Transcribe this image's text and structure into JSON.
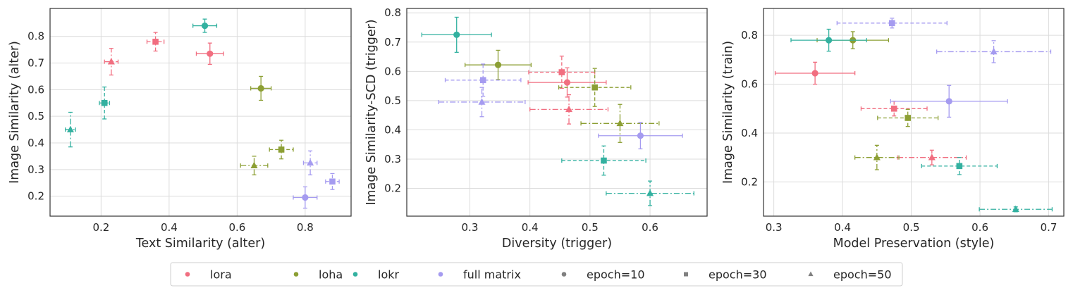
{
  "legend": {
    "position": "bottom-center",
    "entries": [
      {
        "label": "lora",
        "color": "#f16e80",
        "marker": "circle"
      },
      {
        "label": "loha",
        "color": "#8c9f34",
        "marker": "circle"
      },
      {
        "label": "lokr",
        "color": "#33b1a0",
        "marker": "circle"
      },
      {
        "label": "full matrix",
        "color": "#a59bf0",
        "marker": "circle"
      },
      {
        "label": "epoch=10",
        "color": "#808080",
        "marker": "circle"
      },
      {
        "label": "epoch=30",
        "color": "#808080",
        "marker": "square"
      },
      {
        "label": "epoch=50",
        "color": "#808080",
        "marker": "triangle"
      }
    ]
  },
  "colors": {
    "lora": "#f16e80",
    "loha": "#8c9f34",
    "lokr": "#33b1a0",
    "full matrix": "#a59bf0"
  },
  "markers": {
    "10": "circle",
    "30": "square",
    "50": "triangle"
  },
  "line_styles": {
    "10": "solid",
    "30": "dashed",
    "50": "dashdot"
  },
  "chart_data": [
    {
      "type": "scatter",
      "xlabel": "Text Similarity (alter)",
      "ylabel": "Image Similarity (alter)",
      "xlim": [
        0.05,
        0.935
      ],
      "ylim": [
        0.125,
        0.905
      ],
      "xticks": [
        0.2,
        0.4,
        0.6,
        0.8
      ],
      "yticks": [
        0.2,
        0.3,
        0.4,
        0.5,
        0.6,
        0.7,
        0.8
      ],
      "grid": true,
      "points": [
        {
          "algo": "lora",
          "epoch": 10,
          "x": 0.52,
          "y": 0.735,
          "xerr": 0.04,
          "yerr": 0.04
        },
        {
          "algo": "lora",
          "epoch": 30,
          "x": 0.36,
          "y": 0.78,
          "xerr": 0.025,
          "yerr": 0.035
        },
        {
          "algo": "lora",
          "epoch": 50,
          "x": 0.23,
          "y": 0.705,
          "xerr": 0.02,
          "yerr": 0.05
        },
        {
          "algo": "loha",
          "epoch": 10,
          "x": 0.67,
          "y": 0.605,
          "xerr": 0.03,
          "yerr": 0.045
        },
        {
          "algo": "loha",
          "epoch": 30,
          "x": 0.73,
          "y": 0.375,
          "xerr": 0.035,
          "yerr": 0.035
        },
        {
          "algo": "loha",
          "epoch": 50,
          "x": 0.65,
          "y": 0.315,
          "xerr": 0.04,
          "yerr": 0.035
        },
        {
          "algo": "lokr",
          "epoch": 10,
          "x": 0.505,
          "y": 0.84,
          "xerr": 0.035,
          "yerr": 0.025
        },
        {
          "algo": "lokr",
          "epoch": 30,
          "x": 0.21,
          "y": 0.55,
          "xerr": 0.015,
          "yerr": 0.06
        },
        {
          "algo": "lokr",
          "epoch": 50,
          "x": 0.11,
          "y": 0.45,
          "xerr": 0.015,
          "yerr": 0.065
        },
        {
          "algo": "full matrix",
          "epoch": 10,
          "x": 0.8,
          "y": 0.195,
          "xerr": 0.035,
          "yerr": 0.04
        },
        {
          "algo": "full matrix",
          "epoch": 30,
          "x": 0.88,
          "y": 0.255,
          "xerr": 0.02,
          "yerr": 0.03
        },
        {
          "algo": "full matrix",
          "epoch": 50,
          "x": 0.815,
          "y": 0.325,
          "xerr": 0.02,
          "yerr": 0.045
        }
      ]
    },
    {
      "type": "scatter",
      "xlabel": "Diversity (trigger)",
      "ylabel": "Image Similarity-SCD (trigger)",
      "xlim": [
        0.195,
        0.695
      ],
      "ylim": [
        0.105,
        0.815
      ],
      "xticks": [
        0.3,
        0.4,
        0.5,
        0.6
      ],
      "yticks": [
        0.2,
        0.3,
        0.4,
        0.5,
        0.6,
        0.7,
        0.8
      ],
      "grid": true,
      "points": [
        {
          "algo": "lora",
          "epoch": 10,
          "x": 0.462,
          "y": 0.562,
          "xerr": 0.065,
          "yerr": 0.05
        },
        {
          "algo": "lora",
          "epoch": 30,
          "x": 0.453,
          "y": 0.597,
          "xerr": 0.055,
          "yerr": 0.055
        },
        {
          "algo": "lora",
          "epoch": 50,
          "x": 0.465,
          "y": 0.47,
          "xerr": 0.065,
          "yerr": 0.05
        },
        {
          "algo": "loha",
          "epoch": 10,
          "x": 0.347,
          "y": 0.622,
          "xerr": 0.055,
          "yerr": 0.05
        },
        {
          "algo": "loha",
          "epoch": 30,
          "x": 0.508,
          "y": 0.545,
          "xerr": 0.06,
          "yerr": 0.065
        },
        {
          "algo": "loha",
          "epoch": 50,
          "x": 0.55,
          "y": 0.422,
          "xerr": 0.065,
          "yerr": 0.065
        },
        {
          "algo": "lokr",
          "epoch": 10,
          "x": 0.278,
          "y": 0.725,
          "xerr": 0.058,
          "yerr": 0.06
        },
        {
          "algo": "lokr",
          "epoch": 30,
          "x": 0.523,
          "y": 0.295,
          "xerr": 0.07,
          "yerr": 0.05
        },
        {
          "algo": "lokr",
          "epoch": 50,
          "x": 0.6,
          "y": 0.183,
          "xerr": 0.073,
          "yerr": 0.042
        },
        {
          "algo": "full matrix",
          "epoch": 10,
          "x": 0.584,
          "y": 0.38,
          "xerr": 0.07,
          "yerr": 0.045
        },
        {
          "algo": "full matrix",
          "epoch": 30,
          "x": 0.322,
          "y": 0.57,
          "xerr": 0.063,
          "yerr": 0.055
        },
        {
          "algo": "full matrix",
          "epoch": 50,
          "x": 0.32,
          "y": 0.495,
          "xerr": 0.072,
          "yerr": 0.05
        }
      ]
    },
    {
      "type": "scatter",
      "xlabel": "Model Preservation (style)",
      "ylabel": "Image Similarity (train)",
      "xlim": [
        0.285,
        0.722
      ],
      "ylim": [
        0.06,
        0.91
      ],
      "xticks": [
        0.3,
        0.4,
        0.5,
        0.6,
        0.7
      ],
      "yticks": [
        0.2,
        0.4,
        0.6,
        0.8
      ],
      "grid": true,
      "points": [
        {
          "algo": "lora",
          "epoch": 10,
          "x": 0.36,
          "y": 0.645,
          "xerr": 0.058,
          "yerr": 0.045
        },
        {
          "algo": "lora",
          "epoch": 30,
          "x": 0.475,
          "y": 0.5,
          "xerr": 0.048,
          "yerr": 0.03
        },
        {
          "algo": "lora",
          "epoch": 50,
          "x": 0.53,
          "y": 0.3,
          "xerr": 0.05,
          "yerr": 0.03
        },
        {
          "algo": "loha",
          "epoch": 10,
          "x": 0.415,
          "y": 0.78,
          "xerr": 0.052,
          "yerr": 0.035
        },
        {
          "algo": "loha",
          "epoch": 30,
          "x": 0.495,
          "y": 0.462,
          "xerr": 0.044,
          "yerr": 0.035
        },
        {
          "algo": "loha",
          "epoch": 50,
          "x": 0.45,
          "y": 0.3,
          "xerr": 0.032,
          "yerr": 0.05
        },
        {
          "algo": "lokr",
          "epoch": 10,
          "x": 0.38,
          "y": 0.78,
          "xerr": 0.055,
          "yerr": 0.045
        },
        {
          "algo": "lokr",
          "epoch": 30,
          "x": 0.57,
          "y": 0.265,
          "xerr": 0.055,
          "yerr": 0.035
        },
        {
          "algo": "lokr",
          "epoch": 50,
          "x": 0.652,
          "y": 0.088,
          "xerr": 0.053,
          "yerr": 0.01
        },
        {
          "algo": "full matrix",
          "epoch": 10,
          "x": 0.555,
          "y": 0.53,
          "xerr": 0.085,
          "yerr": 0.065
        },
        {
          "algo": "full matrix",
          "epoch": 30,
          "x": 0.472,
          "y": 0.85,
          "xerr": 0.08,
          "yerr": 0.02
        },
        {
          "algo": "full matrix",
          "epoch": 50,
          "x": 0.62,
          "y": 0.733,
          "xerr": 0.083,
          "yerr": 0.045
        }
      ]
    }
  ]
}
